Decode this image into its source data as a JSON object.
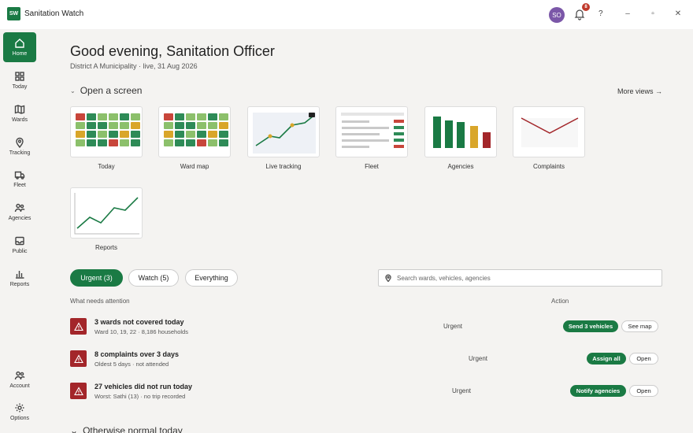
{
  "app": {
    "logo_text": "SW",
    "title": "Sanitation Watch",
    "user_initials": "SO",
    "notification_count": "8",
    "help_label": "?",
    "minimize_label": "–",
    "maximize_label": "▫",
    "close_label": "✕"
  },
  "sidebar": {
    "items": [
      {
        "label": "Home",
        "icon": "home-icon"
      },
      {
        "label": "Today",
        "icon": "grid-icon"
      },
      {
        "label": "Wards",
        "icon": "map-icon"
      },
      {
        "label": "Tracking",
        "icon": "location-pin-icon"
      },
      {
        "label": "Fleet",
        "icon": "truck-icon"
      },
      {
        "label": "Agencies",
        "icon": "people-icon"
      },
      {
        "label": "Public",
        "icon": "inbox-icon"
      },
      {
        "label": "Reports",
        "icon": "bar-chart-icon"
      }
    ],
    "bottom_items": [
      {
        "label": "Account",
        "icon": "account-icon"
      },
      {
        "label": "Options",
        "icon": "gear-icon"
      }
    ]
  },
  "header": {
    "greeting": "Good evening, Sanitation Officer",
    "subline": "District A Municipality · live, 31 Aug 2026"
  },
  "screens": {
    "heading": "Open a screen",
    "more_views": "More views →",
    "tiles": [
      {
        "label": "Today"
      },
      {
        "label": "Ward map"
      },
      {
        "label": "Live tracking"
      },
      {
        "label": "Fleet"
      },
      {
        "label": "Agencies"
      },
      {
        "label": "Complaints"
      },
      {
        "label": "Reports"
      }
    ]
  },
  "filters": {
    "urgent": "Urgent (3)",
    "watch": "Watch (5)",
    "everything": "Everything"
  },
  "search": {
    "placeholder": "Search wards, vehicles, agencies"
  },
  "attention": {
    "col_what": "What needs attention",
    "col_action": "Action",
    "rows": [
      {
        "title": "3 wards not covered today",
        "sub": "Ward 10, 19, 22 · 8,186 households",
        "status": "Urgent",
        "primary": "Send 3 vehicles",
        "secondary": "See map"
      },
      {
        "title": "8 complaints over 3 days",
        "sub": "Oldest 5 days · not attended",
        "status": "Urgent",
        "primary": "Assign all",
        "secondary": "Open"
      },
      {
        "title": "27 vehicles did not run today",
        "sub": "Worst: Sathi (13) · no trip recorded",
        "status": "Urgent",
        "primary": "Notify agencies",
        "secondary": "Open"
      }
    ]
  },
  "bottom_section": {
    "heading": "Otherwise normal today"
  },
  "colors": {
    "brand": "#1a7a44",
    "alert": "#a3262a",
    "amber": "#d9a62a",
    "light_green": "#8cc06b"
  }
}
